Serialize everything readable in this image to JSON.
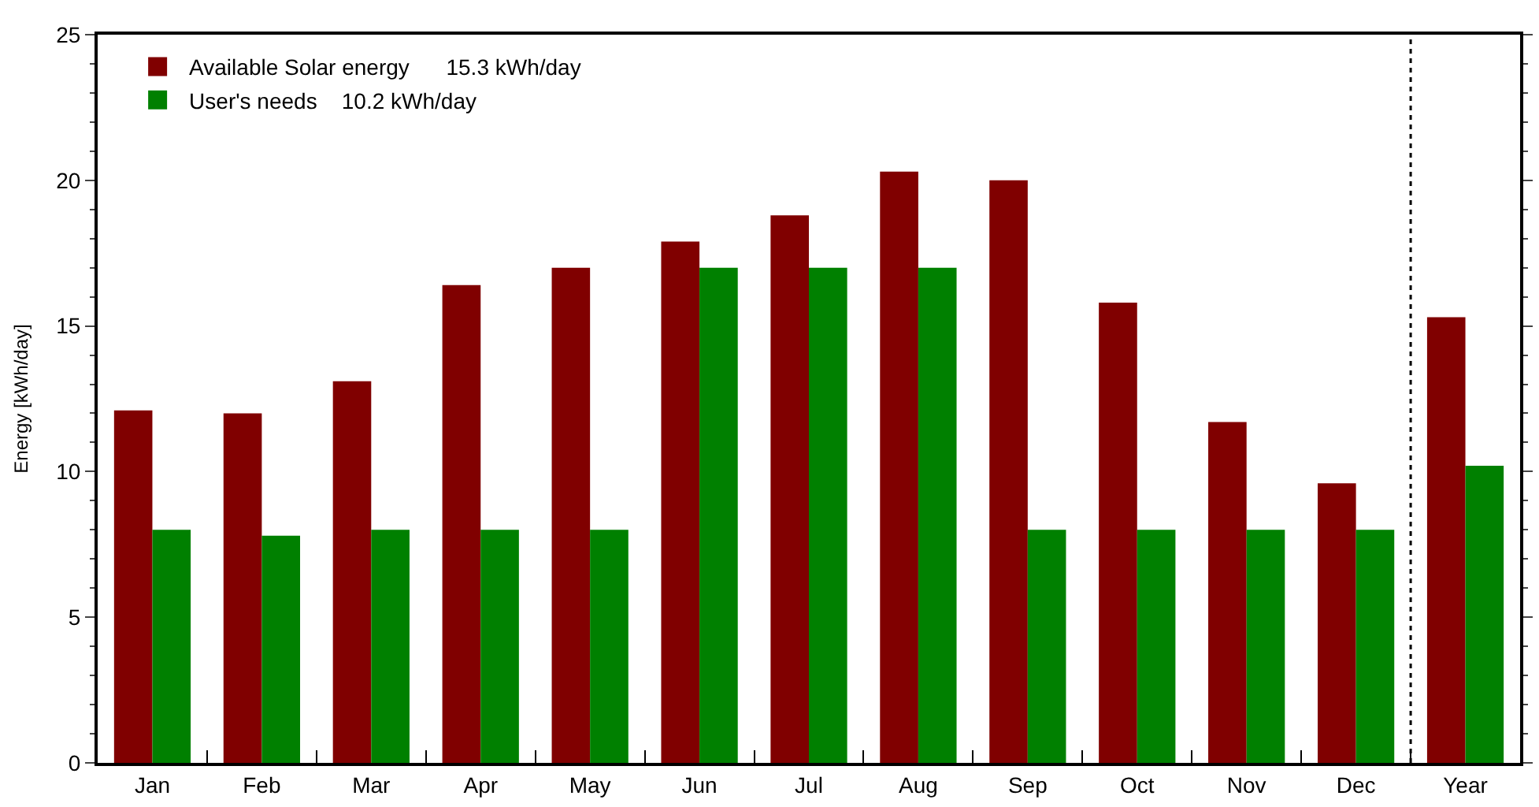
{
  "chart_data": {
    "type": "bar",
    "ylabel": "Energy [kWh/day]",
    "categories": [
      "Jan",
      "Feb",
      "Mar",
      "Apr",
      "May",
      "Jun",
      "Jul",
      "Aug",
      "Sep",
      "Oct",
      "Nov",
      "Dec",
      "Year"
    ],
    "series": [
      {
        "name": "Available Solar energy      15.3 kWh/day",
        "color": "#800000",
        "values": [
          12.1,
          12.0,
          13.1,
          16.4,
          17.0,
          17.9,
          18.8,
          20.3,
          20.0,
          15.8,
          11.7,
          9.6,
          15.3
        ]
      },
      {
        "name": "User's needs    10.2 kWh/day",
        "color": "#008000",
        "values": [
          8.0,
          7.8,
          8.0,
          8.0,
          8.0,
          17.0,
          17.0,
          17.0,
          8.0,
          8.0,
          8.0,
          8.0,
          10.2
        ]
      }
    ],
    "ylim": [
      0,
      25
    ],
    "yticks": [
      0,
      5,
      10,
      15,
      20,
      25
    ],
    "legend": "top left"
  }
}
